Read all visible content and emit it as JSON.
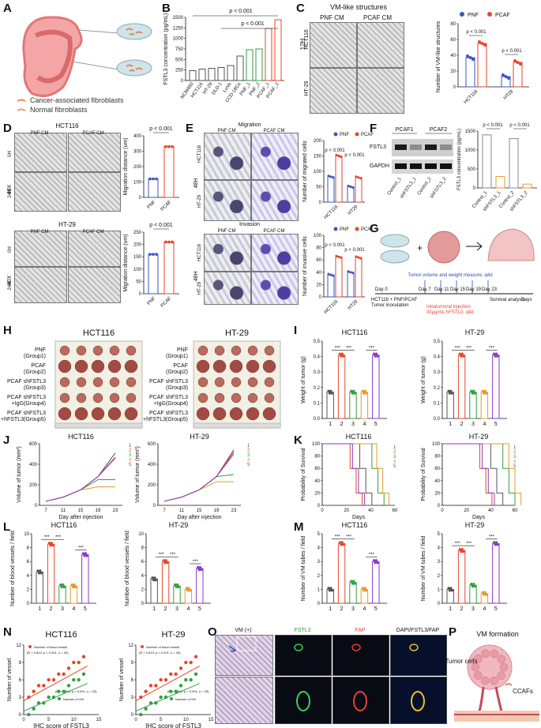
{
  "panels": {
    "A": {
      "label": "A",
      "legend": [
        "Cancer-associated fibroblasts",
        "Normal fibroblasts"
      ]
    },
    "B": {
      "label": "B",
      "ylabel": "FSTL3 concentration (pg/mL)",
      "ylim": [
        0,
        1600
      ],
      "yticks": [
        "0",
        "250",
        "500",
        "750",
        "1000",
        "1250",
        "1500"
      ],
      "categories": [
        "NCM460",
        "HCT116",
        "HT-29",
        "DLD-1",
        "LoVo",
        "CCD-18Co",
        "PNF_1",
        "PNF_2",
        "PCAF_1",
        "PCAF_2"
      ],
      "p1": "p < 0.001",
      "p2": "p < 0.001"
    },
    "C": {
      "label": "C",
      "title": "VM-like structures",
      "col1": "PNF CM",
      "col2": "PCAF CM",
      "time": "12H",
      "row1": "HCT116",
      "row2": "HT-29",
      "ylabel": "Number of VM-like structures",
      "legend": [
        "PNF",
        "PCAF"
      ],
      "pvals": [
        "p < 0.001",
        "p < 0.001"
      ],
      "xcats": [
        "HCT116",
        "HT29"
      ],
      "yticks": [
        "0",
        "20",
        "40",
        "60",
        "80"
      ]
    },
    "D": {
      "label": "D",
      "hct": "HCT116",
      "ht": "HT-29",
      "col1": "PNF CM",
      "col2": "PCAF CM",
      "mag": "40X",
      "t0": "0H",
      "t24": "24H",
      "ylabel": "Migration distance (um)",
      "pval": "p < 0.001",
      "xcats": [
        "PNF",
        "PCAF"
      ],
      "yticks": [
        "0",
        "100",
        "200",
        "300",
        "400"
      ],
      "yticks2": [
        "0",
        "50",
        "100",
        "150",
        "200",
        "250"
      ]
    },
    "E": {
      "label": "E",
      "title1": "Migration",
      "title2": "Invasion",
      "col1": "PNF CM",
      "col2": "PCAF CM",
      "time": "48H",
      "row1": "HCT116",
      "row2": "HT-29",
      "ylabel1": "Number of migrated cells",
      "ylabel2": "Number of invasive cells",
      "legend": [
        "PNF",
        "PCAF"
      ],
      "pvals": [
        "p < 0.001",
        "p < 0.001"
      ],
      "xcats": [
        "HCT116",
        "HT29"
      ]
    },
    "F": {
      "label": "F",
      "col1": "PCAF1",
      "col2": "PCAF2",
      "row1": "FSTL3",
      "row2": "GAPDH",
      "lanes": [
        "Control_1",
        "shFSTL3_1",
        "Control_2",
        "shFSTL3_2"
      ],
      "ylabel": "FSTL3 concentration (pg/mL)",
      "pvals": [
        "p < 0.001",
        "p < 0.001"
      ],
      "yticks": [
        "0",
        "500",
        "1000",
        "1500"
      ]
    },
    "G": {
      "label": "G",
      "line1": "Tumor volume and weight measure, q4d",
      "inoc": "HCT116 + PNF/PCAF",
      "inoc2": "Tumor inoculation",
      "d0": "Day 0",
      "days": [
        "Day 7",
        "Day 11",
        "Day 15",
        "Day 19",
        "Day 23"
      ],
      "surv": "Survival analysis",
      "axis": "Days",
      "inj1": "Intratumoral injection",
      "inj2": "30μg/mL hFSTL3, q4d"
    },
    "H": {
      "label": "H",
      "hct": "HCT116",
      "ht": "HT-29",
      "groups": [
        "PNF\n(Group1)",
        "PCAF\n(Group2)",
        "PCAF shFSTL3\n(Group3)",
        "PCAF shFSTL3\n+IgG(Group4)",
        "PCAF shFSTL3\n+hFSTL3(Group5)"
      ]
    },
    "I": {
      "label": "I",
      "hct": "HCT116",
      "ht": "HT-29",
      "ylabel": "Weight of tumor (g)",
      "sig": "***",
      "yticks": [
        "0.0",
        "0.1",
        "0.2",
        "0.3",
        "0.4",
        "0.5"
      ],
      "xcats": [
        "1",
        "2",
        "3",
        "4",
        "5"
      ]
    },
    "J": {
      "label": "J",
      "hct": "HCT116",
      "ht": "HT-29",
      "ylabel": "Volume of tumor (mm³)",
      "xlabel": "Day after injection",
      "xticks": [
        "7",
        "11",
        "15",
        "19",
        "23"
      ],
      "yticks": [
        "0",
        "200",
        "400",
        "600"
      ],
      "series": [
        "1",
        "2",
        "3",
        "4",
        "5"
      ]
    },
    "K": {
      "label": "K",
      "hct": "HCT116",
      "ht": "HT-29",
      "ylabel": "Probability of Survival",
      "xlabel": "Days",
      "xticks": [
        "0",
        "20",
        "40",
        "60"
      ],
      "yticks": [
        "0",
        "20",
        "40",
        "60",
        "80",
        "100"
      ],
      "series": [
        "1",
        "2",
        "3",
        "4",
        "5"
      ]
    },
    "L": {
      "label": "L",
      "hct": "HCT116",
      "ht": "HT-29",
      "ylabel": "Number of blood vessels / field",
      "sig": "***",
      "yticks": [
        "0",
        "2",
        "4",
        "6",
        "8",
        "10"
      ],
      "xcats": [
        "1",
        "2",
        "3",
        "4",
        "5"
      ]
    },
    "M": {
      "label": "M",
      "hct": "HCT116",
      "ht": "HT-29",
      "ylabel": "Number of VM tubes / field",
      "sig": "***",
      "yticks": [
        "0",
        "1",
        "2",
        "3",
        "4",
        "5"
      ],
      "xcats": [
        "1",
        "2",
        "3",
        "4",
        "5"
      ]
    },
    "N": {
      "label": "N",
      "hct": "HCT116",
      "ht": "HT-29",
      "ylabel": "Number of vessel",
      "xlabel": "IHC score of FSTL3",
      "leg1": "Number of blood vessel",
      "leg2": "Number of VM",
      "stat1": "(R = 0.813, p < 0.001, n = 25)",
      "stat2": "(R = 0.858, p < 0.001, n = 25)",
      "xticks": [
        "0",
        "5",
        "10",
        "15"
      ],
      "yticks": [
        "0",
        "3",
        "6",
        "9",
        "12"
      ]
    },
    "O": {
      "label": "O",
      "titles": [
        "VM (+)",
        "FSTL3",
        "FAP",
        "DAPI/FSTL3/FAP"
      ]
    },
    "P": {
      "label": "P",
      "title": "VM formation",
      "cells": "Tumor cells",
      "ccaf": "CCAFs"
    }
  },
  "colors": {
    "pnf": "#3a56c8",
    "pcaf": "#e8452a",
    "g1": "#555555",
    "g2": "#e8452a",
    "g3": "#2fa040",
    "g4": "#e89a2a",
    "g5": "#8a3ac8"
  },
  "chart_data": [
    {
      "type": "bar",
      "panel": "B",
      "categories": [
        "NCM460",
        "HCT116",
        "HT-29",
        "DLD-1",
        "LoVo",
        "CCD-18Co",
        "PNF_1",
        "PNF_2",
        "PCAF_1",
        "PCAF_2"
      ],
      "values": [
        250,
        290,
        310,
        330,
        380,
        620,
        780,
        800,
        1320,
        1540
      ],
      "ylim": [
        0,
        1600
      ],
      "ylabel": "FSTL3 concentration (pg/mL)"
    },
    {
      "type": "bar",
      "panel": "C",
      "categories": [
        "HCT116",
        "HT29"
      ],
      "series": [
        {
          "name": "PNF",
          "values": [
            37,
            13
          ]
        },
        {
          "name": "PCAF",
          "values": [
            55,
            31
          ]
        }
      ],
      "ylim": [
        0,
        80
      ]
    },
    {
      "type": "bar",
      "panel": "D-HCT116",
      "categories": [
        "PNF",
        "PCAF"
      ],
      "values": [
        120,
        330
      ],
      "ylim": [
        0,
        400
      ]
    },
    {
      "type": "bar",
      "panel": "D-HT-29",
      "categories": [
        "PNF",
        "PCAF"
      ],
      "values": [
        160,
        210
      ],
      "ylim": [
        0,
        250
      ]
    },
    {
      "type": "bar",
      "panel": "I-HCT116",
      "categories": [
        "1",
        "2",
        "3",
        "4",
        "5"
      ],
      "values": [
        0.17,
        0.41,
        0.17,
        0.17,
        0.41
      ],
      "ylim": [
        0,
        0.5
      ]
    },
    {
      "type": "bar",
      "panel": "I-HT-29",
      "categories": [
        "1",
        "2",
        "3",
        "4",
        "5"
      ],
      "values": [
        0.17,
        0.41,
        0.17,
        0.17,
        0.41
      ],
      "ylim": [
        0,
        0.5
      ]
    },
    {
      "type": "bar",
      "panel": "L-HCT116",
      "categories": [
        "1",
        "2",
        "3",
        "4",
        "5"
      ],
      "values": [
        4.5,
        8.5,
        2.5,
        2.5,
        7
      ],
      "ylim": [
        0,
        10
      ]
    },
    {
      "type": "bar",
      "panel": "L-HT-29",
      "categories": [
        "1",
        "2",
        "3",
        "4",
        "5"
      ],
      "values": [
        3.5,
        6,
        2.5,
        2,
        5
      ],
      "ylim": [
        0,
        10
      ]
    },
    {
      "type": "bar",
      "panel": "M-HCT116",
      "categories": [
        "1",
        "2",
        "3",
        "4",
        "5"
      ],
      "values": [
        1,
        4.3,
        1.5,
        1,
        3
      ],
      "ylim": [
        0,
        5
      ]
    },
    {
      "type": "bar",
      "panel": "M-HT-29",
      "categories": [
        "1",
        "2",
        "3",
        "4",
        "5"
      ],
      "values": [
        1,
        3.8,
        1.3,
        0.7,
        4.3
      ],
      "ylim": [
        0,
        5
      ]
    }
  ]
}
